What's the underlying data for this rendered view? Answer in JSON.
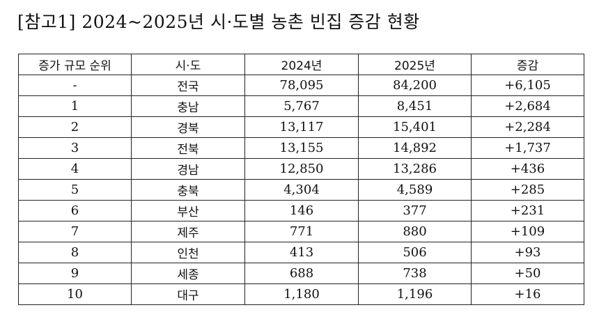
{
  "title": "[참고1] 2024~2025년 시·도별 농촌 빈집 증감 현황",
  "table": {
    "headers": [
      "증가 규모 순위",
      "시·도",
      "2024년",
      "2025년",
      "증감"
    ],
    "rows": [
      {
        "rank": "-",
        "region": "전국",
        "y2024": "78,095",
        "y2025": "84,200",
        "change": "+6,105"
      },
      {
        "rank": "1",
        "region": "충남",
        "y2024": "5,767",
        "y2025": "8,451",
        "change": "+2,684"
      },
      {
        "rank": "2",
        "region": "경북",
        "y2024": "13,117",
        "y2025": "15,401",
        "change": "+2,284"
      },
      {
        "rank": "3",
        "region": "전북",
        "y2024": "13,155",
        "y2025": "14,892",
        "change": "+1,737"
      },
      {
        "rank": "4",
        "region": "경남",
        "y2024": "12,850",
        "y2025": "13,286",
        "change": "+436"
      },
      {
        "rank": "5",
        "region": "충북",
        "y2024": "4,304",
        "y2025": "4,589",
        "change": "+285"
      },
      {
        "rank": "6",
        "region": "부산",
        "y2024": "146",
        "y2025": "377",
        "change": "+231"
      },
      {
        "rank": "7",
        "region": "제주",
        "y2024": "771",
        "y2025": "880",
        "change": "+109"
      },
      {
        "rank": "8",
        "region": "인천",
        "y2024": "413",
        "y2025": "506",
        "change": "+93"
      },
      {
        "rank": "9",
        "region": "세종",
        "y2024": "688",
        "y2025": "738",
        "change": "+50"
      },
      {
        "rank": "10",
        "region": "대구",
        "y2024": "1,180",
        "y2025": "1,196",
        "change": "+16"
      }
    ]
  }
}
